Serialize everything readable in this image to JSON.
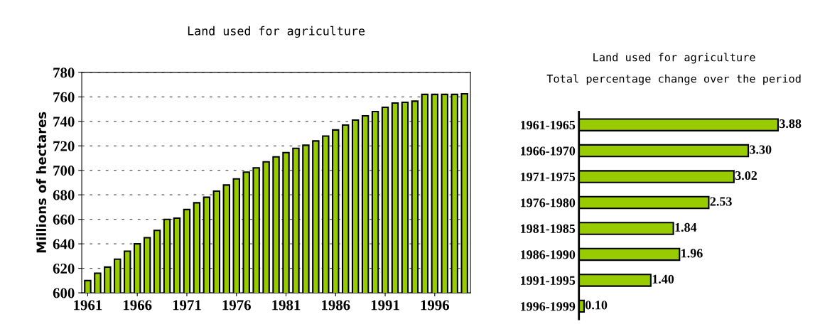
{
  "chart_data": [
    {
      "type": "bar",
      "title": "Land used for agriculture",
      "ylabel": "Millions of hectares",
      "x": [
        1961,
        1962,
        1963,
        1964,
        1965,
        1966,
        1967,
        1968,
        1969,
        1970,
        1971,
        1972,
        1973,
        1974,
        1975,
        1976,
        1977,
        1978,
        1979,
        1980,
        1981,
        1982,
        1983,
        1984,
        1985,
        1986,
        1987,
        1988,
        1989,
        1990,
        1991,
        1992,
        1993,
        1994,
        1995,
        1996,
        1997,
        1998,
        1999
      ],
      "values": [
        610,
        616,
        621,
        627.5,
        634,
        640,
        645,
        651,
        660,
        661,
        668,
        673.5,
        678,
        683,
        688,
        693,
        698.5,
        702,
        707,
        711,
        714.5,
        718,
        720.5,
        724,
        728,
        733,
        737,
        741,
        744.5,
        748,
        751.5,
        755,
        755.5,
        756.5,
        762,
        762,
        762,
        762,
        762.5
      ],
      "color": "#99cc00",
      "xlim": [
        1960.4,
        1999.6
      ],
      "xticks": [
        1961,
        1966,
        1971,
        1976,
        1981,
        1986,
        1991,
        1996
      ],
      "ylim": [
        600,
        780
      ],
      "yticks": [
        600,
        620,
        640,
        660,
        680,
        700,
        720,
        740,
        760,
        780
      ],
      "grid": "y",
      "line_style": "dashed",
      "legend": false
    },
    {
      "type": "bar",
      "orientation": "horizontal",
      "title": "Land used for agriculture",
      "subtitle": "Total percentage change over the period",
      "categories": [
        "1961-1965",
        "1966-1970",
        "1971-1975",
        "1976-1980",
        "1981-1985",
        "1986-1990",
        "1991-1995",
        "1996-1999"
      ],
      "values": [
        3.88,
        3.3,
        3.02,
        2.53,
        1.84,
        1.96,
        1.4,
        0.1
      ],
      "value_labels": [
        "3.88",
        "3.30",
        "3.02",
        "2.53",
        "1.84",
        "1.96",
        "1.40",
        "0.10"
      ],
      "color": "#99cc00",
      "tick_labels": "y",
      "legend": false
    }
  ]
}
